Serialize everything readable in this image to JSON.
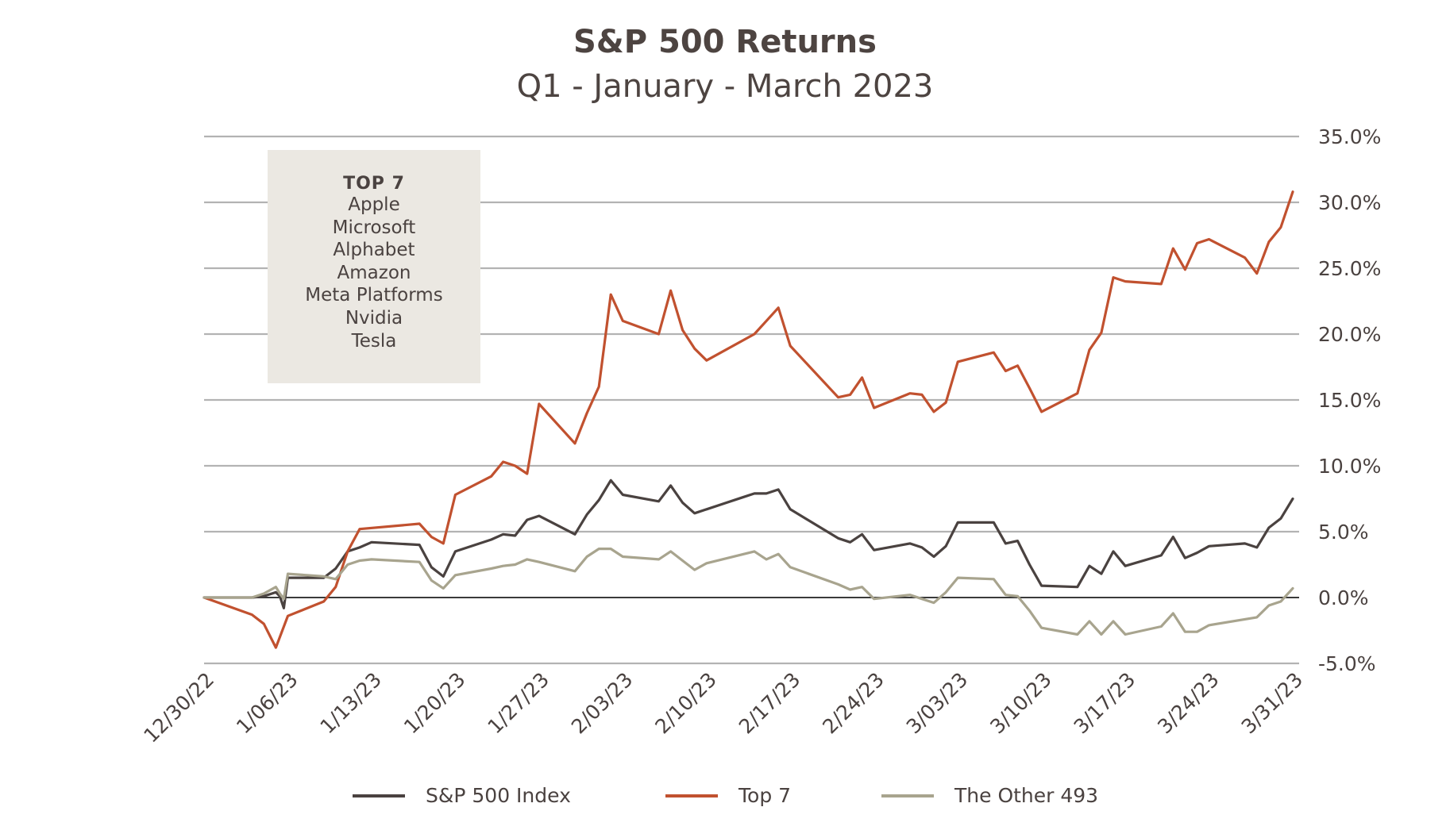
{
  "title": "S&P 500 Returns",
  "subtitle": "Q1 - January - March 2023",
  "top7_box": {
    "heading": "TOP 7",
    "companies": [
      "Apple",
      "Microsoft",
      "Alphabet",
      "Amazon",
      "Meta Platforms",
      "Nvidia",
      "Tesla"
    ]
  },
  "legend": {
    "sp500": "S&P 500 Index",
    "top7": "Top 7",
    "other493": "The Other 493"
  },
  "colors": {
    "sp500": "#4a4240",
    "top7": "#c1512f",
    "other493": "#a8a48e",
    "grid": "#b3b3b3",
    "zero_line": "#3a3a3a"
  },
  "chart_data": {
    "type": "line",
    "x_axis": {
      "range": [
        "12/30/22",
        "3/31/23"
      ],
      "tick_labels": [
        "12/30/22",
        "1/06/23",
        "1/13/23",
        "1/20/23",
        "1/27/23",
        "2/03/23",
        "2/10/23",
        "2/17/23",
        "2/24/23",
        "3/03/23",
        "3/10/23",
        "3/17/23",
        "3/24/23",
        "3/31/23"
      ]
    },
    "y_axis": {
      "min": -5,
      "max": 35,
      "step": 5,
      "side": "right",
      "tick_labels": [
        "-5.0%",
        "0.0%",
        "5.0%",
        "10.0%",
        "15.0%",
        "20.0%",
        "25.0%",
        "30.0%",
        "35.0%"
      ]
    },
    "grid": true,
    "legend_position": "bottom",
    "series": [
      {
        "name": "S&P 500 Index",
        "key": "sp500",
        "points": [
          [
            "12/30/22",
            0
          ],
          [
            "1/03/23",
            0
          ],
          [
            "1/04/23",
            0.1
          ],
          [
            "1/05/23",
            0.4
          ],
          [
            "1/05/23",
            0.1
          ],
          [
            "1/05/23",
            -0.8
          ],
          [
            "1/06/23",
            1.5
          ],
          [
            "1/09/23",
            1.5
          ],
          [
            "1/10/23",
            2.2
          ],
          [
            "1/11/23",
            3.5
          ],
          [
            "1/12/23",
            3.8
          ],
          [
            "1/13/23",
            4.2
          ],
          [
            "1/17/23",
            4.0
          ],
          [
            "1/18/23",
            2.3
          ],
          [
            "1/19/23",
            1.6
          ],
          [
            "1/20/23",
            3.5
          ],
          [
            "1/23/23",
            4.4
          ],
          [
            "1/24/23",
            4.8
          ],
          [
            "1/25/23",
            4.7
          ],
          [
            "1/26/23",
            5.9
          ],
          [
            "1/27/23",
            6.2
          ],
          [
            "1/30/23",
            4.8
          ],
          [
            "1/31/23",
            6.3
          ],
          [
            "2/01/23",
            7.4
          ],
          [
            "2/02/23",
            8.9
          ],
          [
            "2/03/23",
            7.8
          ],
          [
            "2/06/23",
            7.3
          ],
          [
            "2/07/23",
            8.5
          ],
          [
            "2/08/23",
            7.2
          ],
          [
            "2/09/23",
            6.4
          ],
          [
            "2/10/23",
            6.7
          ],
          [
            "2/13/23",
            7.6
          ],
          [
            "2/14/23",
            7.9
          ],
          [
            "2/15/23",
            7.9
          ],
          [
            "2/16/23",
            8.2
          ],
          [
            "2/17/23",
            6.7
          ],
          [
            "2/21/23",
            4.5
          ],
          [
            "2/22/23",
            4.2
          ],
          [
            "2/23/23",
            4.8
          ],
          [
            "2/24/23",
            3.6
          ],
          [
            "2/27/23",
            4.1
          ],
          [
            "2/28/23",
            3.8
          ],
          [
            "3/01/23",
            3.1
          ],
          [
            "3/02/23",
            3.9
          ],
          [
            "3/03/23",
            5.7
          ],
          [
            "3/06/23",
            5.7
          ],
          [
            "3/07/23",
            4.1
          ],
          [
            "3/08/23",
            4.3
          ],
          [
            "3/09/23",
            2.5
          ],
          [
            "3/10/23",
            0.9
          ],
          [
            "3/13/23",
            0.8
          ],
          [
            "3/14/23",
            2.4
          ],
          [
            "3/15/23",
            1.8
          ],
          [
            "3/16/23",
            3.5
          ],
          [
            "3/17/23",
            2.4
          ],
          [
            "3/20/23",
            3.2
          ],
          [
            "3/21/23",
            4.6
          ],
          [
            "3/22/23",
            3.0
          ],
          [
            "3/23/23",
            3.4
          ],
          [
            "3/24/23",
            3.9
          ],
          [
            "3/27/23",
            4.1
          ],
          [
            "3/28/23",
            3.8
          ],
          [
            "3/29/23",
            5.3
          ],
          [
            "3/30/23",
            6.0
          ],
          [
            "3/31/23",
            7.5
          ]
        ]
      },
      {
        "name": "Top 7",
        "key": "top7",
        "points": [
          [
            "12/30/22",
            0
          ],
          [
            "1/03/23",
            -1.3
          ],
          [
            "1/04/23",
            -2.0
          ],
          [
            "1/05/23",
            -3.8
          ],
          [
            "1/06/23",
            -1.4
          ],
          [
            "1/09/23",
            -0.3
          ],
          [
            "1/10/23",
            0.8
          ],
          [
            "1/11/23",
            3.5
          ],
          [
            "1/12/23",
            5.2
          ],
          [
            "1/17/23",
            5.6
          ],
          [
            "1/18/23",
            4.6
          ],
          [
            "1/19/23",
            4.1
          ],
          [
            "1/20/23",
            7.8
          ],
          [
            "1/23/23",
            9.2
          ],
          [
            "1/24/23",
            10.3
          ],
          [
            "1/25/23",
            10.0
          ],
          [
            "1/26/23",
            9.4
          ],
          [
            "1/27/23",
            14.7
          ],
          [
            "1/30/23",
            11.7
          ],
          [
            "1/31/23",
            14.0
          ],
          [
            "2/01/23",
            16.0
          ],
          [
            "2/02/23",
            23.0
          ],
          [
            "2/03/23",
            21.0
          ],
          [
            "2/06/23",
            20.0
          ],
          [
            "2/07/23",
            23.3
          ],
          [
            "2/08/23",
            20.3
          ],
          [
            "2/09/23",
            18.9
          ],
          [
            "2/10/23",
            18.0
          ],
          [
            "2/14/23",
            20.0
          ],
          [
            "2/15/23",
            21.0
          ],
          [
            "2/16/23",
            22.0
          ],
          [
            "2/17/23",
            19.1
          ],
          [
            "2/21/23",
            15.2
          ],
          [
            "2/22/23",
            15.4
          ],
          [
            "2/23/23",
            16.7
          ],
          [
            "2/24/23",
            14.4
          ],
          [
            "2/27/23",
            15.5
          ],
          [
            "2/28/23",
            15.4
          ],
          [
            "3/01/23",
            14.1
          ],
          [
            "3/02/23",
            14.8
          ],
          [
            "3/03/23",
            17.9
          ],
          [
            "3/06/23",
            18.6
          ],
          [
            "3/07/23",
            17.2
          ],
          [
            "3/08/23",
            17.6
          ],
          [
            "3/09/23",
            15.9
          ],
          [
            "3/10/23",
            14.1
          ],
          [
            "3/13/23",
            15.5
          ],
          [
            "3/14/23",
            18.8
          ],
          [
            "3/15/23",
            20.1
          ],
          [
            "3/16/23",
            24.3
          ],
          [
            "3/17/23",
            24.0
          ],
          [
            "3/20/23",
            23.8
          ],
          [
            "3/21/23",
            26.5
          ],
          [
            "3/22/23",
            24.9
          ],
          [
            "3/23/23",
            26.9
          ],
          [
            "3/24/23",
            27.2
          ],
          [
            "3/27/23",
            25.8
          ],
          [
            "3/28/23",
            24.6
          ],
          [
            "3/29/23",
            27.0
          ],
          [
            "3/30/23",
            28.1
          ],
          [
            "3/31/23",
            30.8
          ]
        ]
      },
      {
        "name": "The Other 493",
        "key": "other493",
        "points": [
          [
            "12/30/22",
            0
          ],
          [
            "1/03/23",
            0
          ],
          [
            "1/04/23",
            0.3
          ],
          [
            "1/05/23",
            0.8
          ],
          [
            "1/05/23",
            0.3
          ],
          [
            "1/05/23",
            -0.1
          ],
          [
            "1/06/23",
            1.8
          ],
          [
            "1/09/23",
            1.6
          ],
          [
            "1/10/23",
            1.4
          ],
          [
            "1/11/23",
            2.5
          ],
          [
            "1/12/23",
            2.8
          ],
          [
            "1/13/23",
            2.9
          ],
          [
            "1/17/23",
            2.7
          ],
          [
            "1/18/23",
            1.3
          ],
          [
            "1/19/23",
            0.7
          ],
          [
            "1/20/23",
            1.7
          ],
          [
            "1/23/23",
            2.2
          ],
          [
            "1/24/23",
            2.4
          ],
          [
            "1/25/23",
            2.5
          ],
          [
            "1/26/23",
            2.9
          ],
          [
            "1/27/23",
            2.7
          ],
          [
            "1/30/23",
            2.0
          ],
          [
            "1/31/23",
            3.1
          ],
          [
            "2/01/23",
            3.7
          ],
          [
            "2/02/23",
            3.7
          ],
          [
            "2/03/23",
            3.1
          ],
          [
            "2/06/23",
            2.9
          ],
          [
            "2/07/23",
            3.5
          ],
          [
            "2/08/23",
            2.8
          ],
          [
            "2/09/23",
            2.1
          ],
          [
            "2/10/23",
            2.6
          ],
          [
            "2/14/23",
            3.5
          ],
          [
            "2/15/23",
            2.9
          ],
          [
            "2/16/23",
            3.3
          ],
          [
            "2/17/23",
            2.3
          ],
          [
            "2/21/23",
            1.0
          ],
          [
            "2/22/23",
            0.6
          ],
          [
            "2/23/23",
            0.8
          ],
          [
            "2/24/23",
            -0.1
          ],
          [
            "2/27/23",
            0.2
          ],
          [
            "2/28/23",
            -0.1
          ],
          [
            "3/01/23",
            -0.4
          ],
          [
            "3/02/23",
            0.4
          ],
          [
            "3/03/23",
            1.5
          ],
          [
            "3/06/23",
            1.4
          ],
          [
            "3/07/23",
            0.2
          ],
          [
            "3/08/23",
            0.1
          ],
          [
            "3/09/23",
            -1.0
          ],
          [
            "3/10/23",
            -2.3
          ],
          [
            "3/13/23",
            -2.8
          ],
          [
            "3/14/23",
            -1.8
          ],
          [
            "3/15/23",
            -2.8
          ],
          [
            "3/16/23",
            -1.8
          ],
          [
            "3/17/23",
            -2.8
          ],
          [
            "3/20/23",
            -2.2
          ],
          [
            "3/21/23",
            -1.2
          ],
          [
            "3/22/23",
            -2.6
          ],
          [
            "3/23/23",
            -2.6
          ],
          [
            "3/24/23",
            -2.1
          ],
          [
            "3/28/23",
            -1.5
          ],
          [
            "3/29/23",
            -0.6
          ],
          [
            "3/30/23",
            -0.3
          ],
          [
            "3/31/23",
            0.7
          ]
        ]
      }
    ]
  }
}
